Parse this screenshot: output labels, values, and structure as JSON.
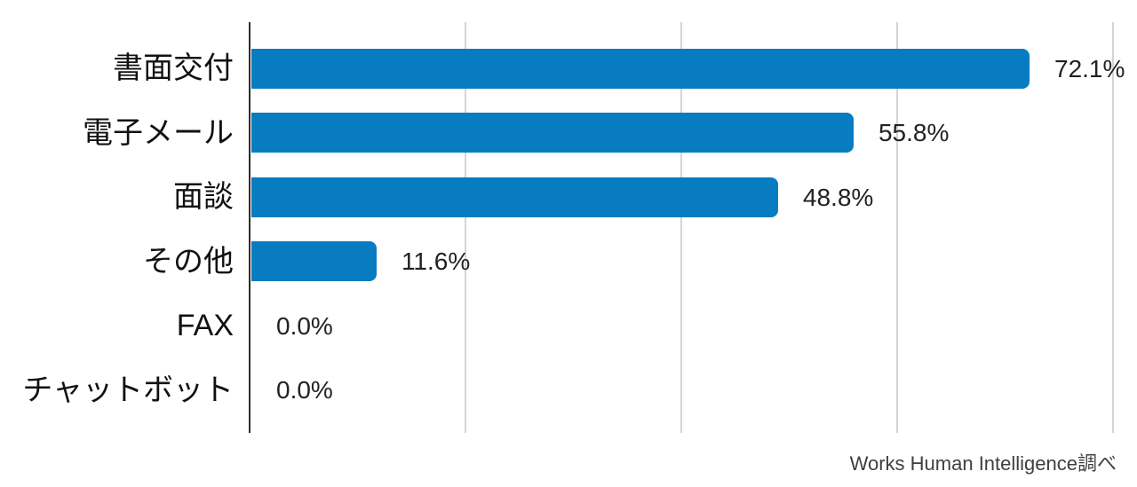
{
  "chart_data": {
    "type": "bar",
    "orientation": "horizontal",
    "title": "",
    "xlabel": "",
    "ylabel": "",
    "categories": [
      "書面交付",
      "電子メール",
      "面談",
      "その他",
      "FAX",
      "チャットボット"
    ],
    "values": [
      72.1,
      55.8,
      48.8,
      11.6,
      0.0,
      0.0
    ],
    "value_labels": [
      "72.1%",
      "55.8%",
      "48.8%",
      "11.6%",
      "0.0%",
      "0.0%"
    ],
    "xlim": [
      0,
      80
    ],
    "gridlines": [
      20,
      40,
      60,
      80
    ],
    "grid": "vertical-only",
    "legend": "none",
    "bar_color": "#087CC1",
    "grid_color": "#d4d4d4",
    "axis_color": "#2e2e2e"
  },
  "footer": {
    "attribution": "Works Human Intelligence調べ"
  }
}
